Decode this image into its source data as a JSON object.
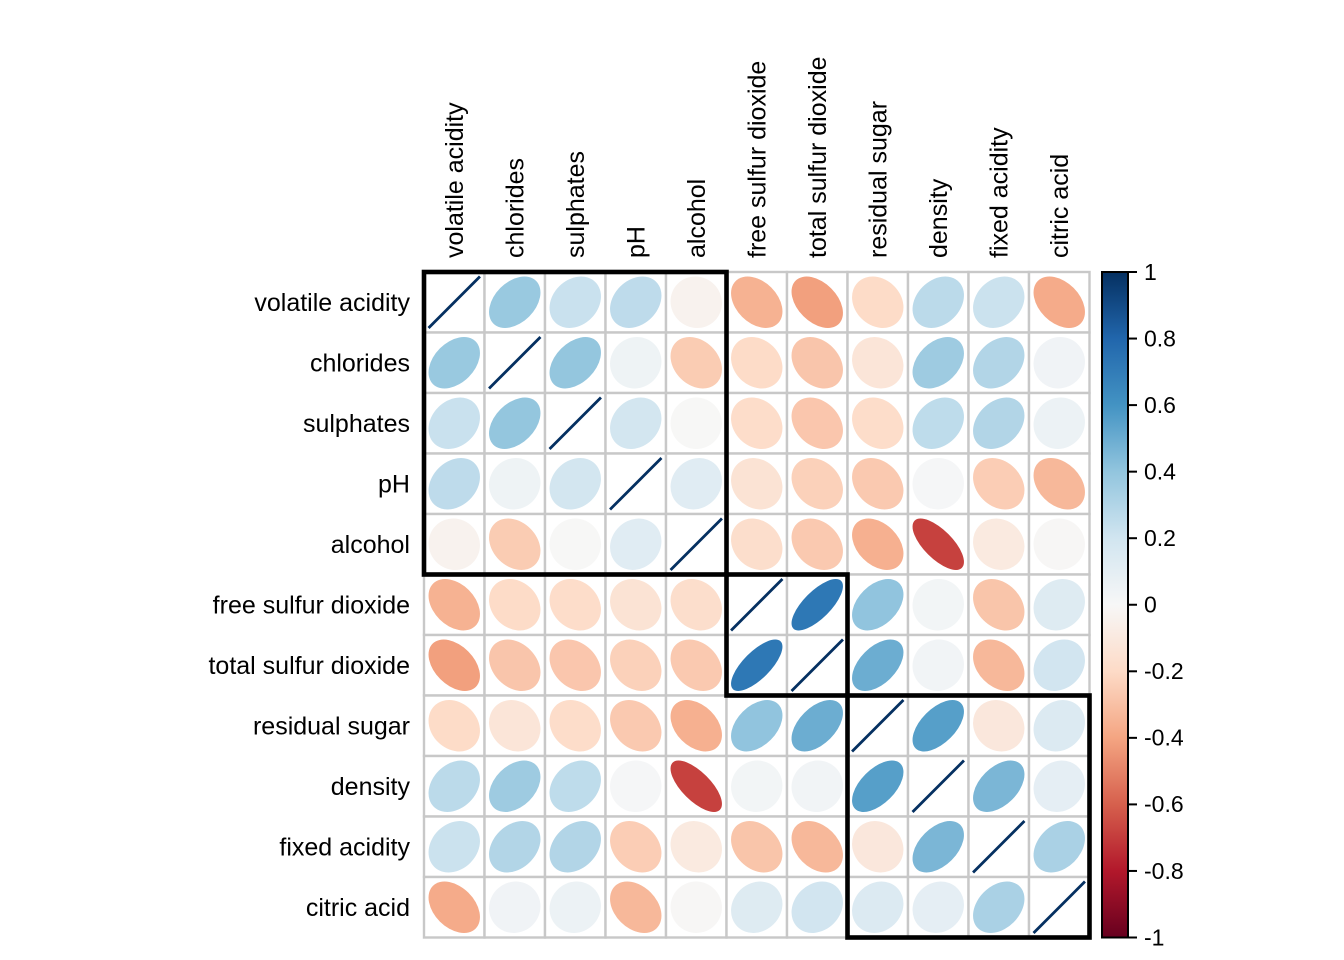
{
  "chart_data": {
    "type": "heatmap",
    "subtype": "correlation-matrix-ellipse",
    "title": "",
    "variables": [
      "volatile acidity",
      "chlorides",
      "sulphates",
      "pH",
      "alcohol",
      "free sulfur dioxide",
      "total sulfur dioxide",
      "residual sugar",
      "density",
      "fixed acidity",
      "citric acid"
    ],
    "matrix": [
      [
        1.0,
        0.377,
        0.226,
        0.261,
        -0.038,
        -0.353,
        -0.414,
        -0.196,
        0.271,
        0.219,
        -0.378
      ],
      [
        0.377,
        1.0,
        0.395,
        0.045,
        -0.257,
        -0.195,
        -0.28,
        -0.129,
        0.363,
        0.298,
        0.039
      ],
      [
        0.226,
        0.395,
        1.0,
        0.192,
        -0.003,
        -0.188,
        -0.276,
        -0.186,
        0.259,
        0.299,
        0.056
      ],
      [
        0.261,
        0.045,
        0.192,
        1.0,
        0.121,
        -0.146,
        -0.238,
        -0.267,
        0.012,
        -0.252,
        -0.33
      ],
      [
        -0.038,
        -0.257,
        -0.003,
        0.121,
        1.0,
        -0.18,
        -0.266,
        -0.359,
        -0.687,
        -0.095,
        -0.01
      ],
      [
        -0.353,
        -0.195,
        -0.188,
        -0.146,
        -0.18,
        1.0,
        0.721,
        0.403,
        0.026,
        -0.283,
        0.133
      ],
      [
        -0.414,
        -0.28,
        -0.276,
        -0.238,
        -0.266,
        0.721,
        1.0,
        0.495,
        0.032,
        -0.329,
        0.195
      ],
      [
        -0.196,
        -0.129,
        -0.186,
        -0.267,
        -0.359,
        0.403,
        0.495,
        1.0,
        0.552,
        -0.112,
        0.142
      ],
      [
        0.271,
        0.363,
        0.259,
        0.012,
        -0.687,
        0.026,
        0.032,
        0.552,
        1.0,
        0.459,
        0.096
      ],
      [
        0.219,
        0.298,
        0.299,
        -0.252,
        -0.095,
        -0.283,
        -0.329,
        -0.112,
        0.459,
        1.0,
        0.324
      ],
      [
        -0.378,
        0.039,
        0.056,
        -0.33,
        -0.01,
        0.133,
        0.195,
        0.142,
        0.096,
        0.324,
        1.0
      ]
    ],
    "value_range": [
      -1,
      1
    ],
    "legend_position": "right",
    "grid": true,
    "colorbar": {
      "orientation": "vertical",
      "tick_labels": [
        "1",
        "0.8",
        "0.6",
        "0.4",
        "0.2",
        "0",
        "-0.2",
        "-0.4",
        "-0.6",
        "-0.8",
        "-1"
      ],
      "tick_values": [
        1,
        0.8,
        0.6,
        0.4,
        0.2,
        0,
        -0.2,
        -0.4,
        -0.6,
        -0.8,
        -1
      ],
      "palette_anchors_low_to_high": [
        "#67001F",
        "#B2182B",
        "#D6604D",
        "#F4A582",
        "#FDDBC7",
        "#F7F7F7",
        "#D1E5F0",
        "#92C5DE",
        "#4393C3",
        "#2166AC",
        "#053061"
      ]
    },
    "cluster_boxes": [
      {
        "start_index": 0,
        "size": 5
      },
      {
        "start_index": 5,
        "size": 2
      },
      {
        "start_index": 7,
        "size": 4
      }
    ],
    "colors": {
      "background": "#ffffff",
      "grid_line": "#c8c8c8",
      "cluster_border": "#000000",
      "diagonal_line": "#053061",
      "label_text": "#000000"
    }
  }
}
